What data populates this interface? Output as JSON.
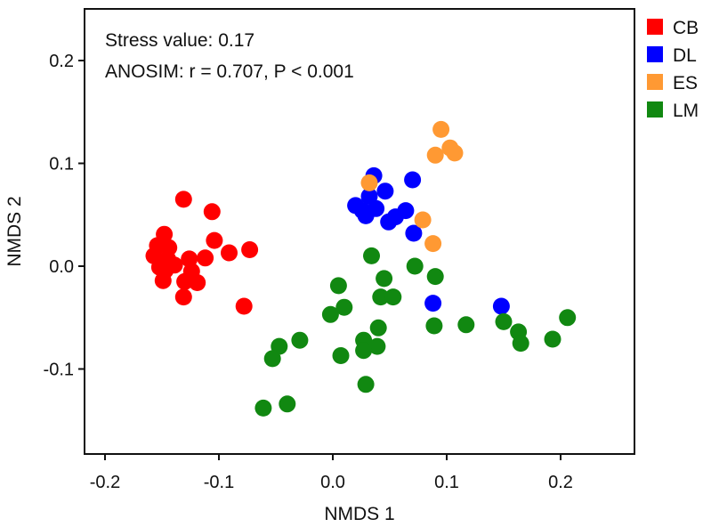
{
  "chart_data": {
    "type": "scatter",
    "xlabel": "NMDS 1",
    "ylabel": "NMDS 2",
    "xlim": [
      -0.2,
      0.26
    ],
    "ylim": [
      -0.18,
      0.25
    ],
    "xticks": [
      -0.2,
      -0.1,
      0.0,
      0.1,
      0.2
    ],
    "xtick_labels": [
      "-0.2",
      "-0.1",
      "0.0",
      "0.1",
      "0.2"
    ],
    "yticks": [
      -0.1,
      0.0,
      0.1,
      0.2
    ],
    "ytick_labels": [
      "-0.1",
      "0.0",
      "0.1",
      "0.2"
    ],
    "annotations": [
      "Stress value: 0.17",
      "ANOSIM: r = 0.707, P < 0.001"
    ],
    "legend_position": "outside-top-right",
    "series": [
      {
        "name": "CB",
        "color": "#ff0000",
        "points": [
          [
            -0.131,
            0.065
          ],
          [
            -0.106,
            0.053
          ],
          [
            -0.148,
            0.031
          ],
          [
            -0.154,
            0.02
          ],
          [
            -0.144,
            0.018
          ],
          [
            -0.104,
            0.025
          ],
          [
            -0.073,
            0.016
          ],
          [
            -0.091,
            0.013
          ],
          [
            -0.157,
            0.01
          ],
          [
            -0.145,
            0.007
          ],
          [
            -0.126,
            0.007
          ],
          [
            -0.112,
            0.008
          ],
          [
            -0.152,
            -0.001
          ],
          [
            -0.147,
            -0.004
          ],
          [
            -0.139,
            0.001
          ],
          [
            -0.124,
            -0.005
          ],
          [
            -0.149,
            -0.014
          ],
          [
            -0.13,
            -0.015
          ],
          [
            -0.119,
            -0.016
          ],
          [
            -0.131,
            -0.03
          ],
          [
            -0.078,
            -0.039
          ]
        ]
      },
      {
        "name": "DL",
        "color": "#0000ff",
        "points": [
          [
            0.036,
            0.088
          ],
          [
            0.07,
            0.084
          ],
          [
            0.046,
            0.073
          ],
          [
            0.032,
            0.068
          ],
          [
            0.02,
            0.059
          ],
          [
            0.038,
            0.056
          ],
          [
            0.026,
            0.054
          ],
          [
            0.064,
            0.054
          ],
          [
            0.055,
            0.048
          ],
          [
            0.029,
            0.049
          ],
          [
            0.049,
            0.043
          ],
          [
            0.071,
            0.032
          ],
          [
            0.088,
            -0.036
          ],
          [
            0.148,
            -0.039
          ]
        ]
      },
      {
        "name": "ES",
        "color": "#ff9933",
        "points": [
          [
            0.095,
            0.133
          ],
          [
            0.103,
            0.115
          ],
          [
            0.107,
            0.11
          ],
          [
            0.09,
            0.108
          ],
          [
            0.032,
            0.081
          ],
          [
            0.079,
            0.045
          ],
          [
            0.088,
            0.022
          ]
        ]
      },
      {
        "name": "LM",
        "color": "#118811",
        "points": [
          [
            0.034,
            0.01
          ],
          [
            0.072,
            0.0
          ],
          [
            0.09,
            -0.01
          ],
          [
            0.045,
            -0.012
          ],
          [
            0.005,
            -0.019
          ],
          [
            0.042,
            -0.03
          ],
          [
            0.053,
            -0.03
          ],
          [
            0.01,
            -0.04
          ],
          [
            -0.002,
            -0.047
          ],
          [
            0.117,
            -0.057
          ],
          [
            0.089,
            -0.058
          ],
          [
            0.15,
            -0.054
          ],
          [
            0.206,
            -0.05
          ],
          [
            0.163,
            -0.064
          ],
          [
            0.04,
            -0.06
          ],
          [
            0.027,
            -0.072
          ],
          [
            -0.029,
            -0.072
          ],
          [
            0.193,
            -0.071
          ],
          [
            0.165,
            -0.075
          ],
          [
            -0.047,
            -0.078
          ],
          [
            0.039,
            -0.078
          ],
          [
            0.027,
            -0.082
          ],
          [
            0.007,
            -0.087
          ],
          [
            -0.053,
            -0.09
          ],
          [
            0.029,
            -0.115
          ],
          [
            -0.04,
            -0.134
          ],
          [
            -0.061,
            -0.138
          ]
        ]
      }
    ]
  }
}
